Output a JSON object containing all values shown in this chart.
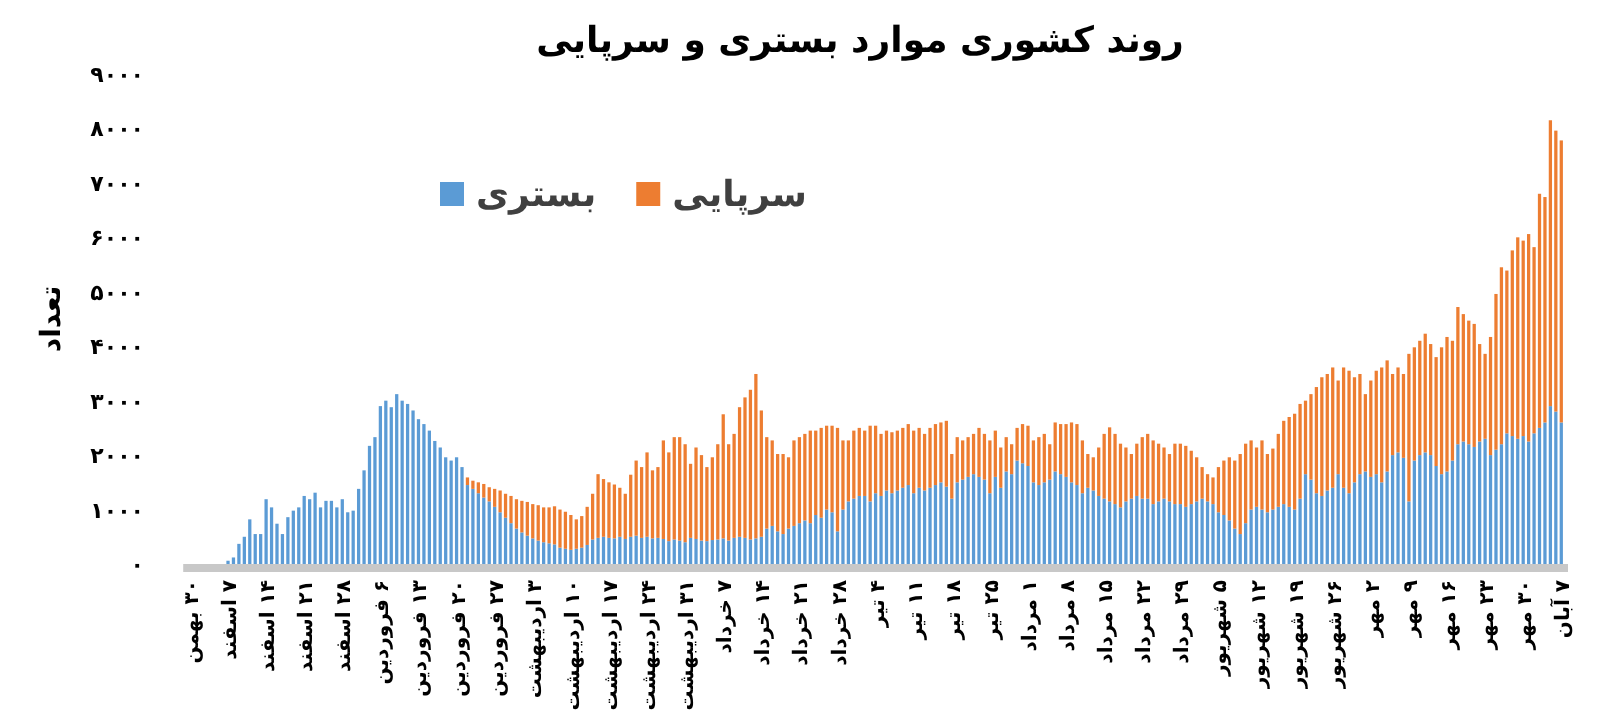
{
  "chart_data": {
    "type": "bar",
    "title": "روند کشوری موارد بستری و سرپایی",
    "ylabel": "تعداد",
    "stacked": true,
    "legend": "top left",
    "ylim": [
      0,
      9000
    ],
    "yticks": [
      {
        "value": 0,
        "label": "۰"
      },
      {
        "value": 1000,
        "label": "۱۰۰۰"
      },
      {
        "value": 2000,
        "label": "۲۰۰۰"
      },
      {
        "value": 3000,
        "label": "۳۰۰۰"
      },
      {
        "value": 4000,
        "label": "۴۰۰۰"
      },
      {
        "value": 5000,
        "label": "۵۰۰۰"
      },
      {
        "value": 6000,
        "label": "۶۰۰۰"
      },
      {
        "value": 7000,
        "label": "۷۰۰۰"
      },
      {
        "value": 8000,
        "label": "۸۰۰۰"
      },
      {
        "value": 9000,
        "label": "۹۰۰۰"
      }
    ],
    "categories": [
      "۳۰ بهمن",
      null,
      null,
      null,
      null,
      null,
      null,
      "۷ اسفند",
      null,
      null,
      null,
      null,
      null,
      null,
      "۱۴ اسفند",
      null,
      null,
      null,
      null,
      null,
      null,
      "۲۱ اسفند",
      null,
      null,
      null,
      null,
      null,
      null,
      "۲۸ اسفند",
      null,
      null,
      null,
      null,
      null,
      null,
      "۶ فروردین",
      null,
      null,
      null,
      null,
      null,
      null,
      "۱۳ فروردین",
      null,
      null,
      null,
      null,
      null,
      null,
      "۲۰ فروردین",
      null,
      null,
      null,
      null,
      null,
      null,
      "۲۷ فروردین",
      null,
      null,
      null,
      null,
      null,
      null,
      "۳ اردیبهشت",
      null,
      null,
      null,
      null,
      null,
      null,
      "۱۰ اردیبهشت",
      null,
      null,
      null,
      null,
      null,
      null,
      "۱۷ اردیبهشت",
      null,
      null,
      null,
      null,
      null,
      null,
      "۲۴ اردیبهشت",
      null,
      null,
      null,
      null,
      null,
      null,
      "۳۱ اردیبهشت",
      null,
      null,
      null,
      null,
      null,
      null,
      "۷ خرداد",
      null,
      null,
      null,
      null,
      null,
      null,
      "۱۴ خرداد",
      null,
      null,
      null,
      null,
      null,
      null,
      "۲۱ خرداد",
      null,
      null,
      null,
      null,
      null,
      null,
      "۲۸ خرداد",
      null,
      null,
      null,
      null,
      null,
      null,
      "۴ تیر",
      null,
      null,
      null,
      null,
      null,
      null,
      "۱۱ تیر",
      null,
      null,
      null,
      null,
      null,
      null,
      "۱۸ تیر",
      null,
      null,
      null,
      null,
      null,
      null,
      "۲۵ تیر",
      null,
      null,
      null,
      null,
      null,
      null,
      "۱ مرداد",
      null,
      null,
      null,
      null,
      null,
      null,
      "۸ مرداد",
      null,
      null,
      null,
      null,
      null,
      null,
      "۱۵ مرداد",
      null,
      null,
      null,
      null,
      null,
      null,
      "۲۲ مرداد",
      null,
      null,
      null,
      null,
      null,
      null,
      "۲۹ مرداد",
      null,
      null,
      null,
      null,
      null,
      null,
      "۵ شهریور",
      null,
      null,
      null,
      null,
      null,
      null,
      "۱۲ شهریور",
      null,
      null,
      null,
      null,
      null,
      null,
      "۱۹ شهریور",
      null,
      null,
      null,
      null,
      null,
      null,
      "۲۶ شهریور",
      null,
      null,
      null,
      null,
      null,
      null,
      "۲ مهر",
      null,
      null,
      null,
      null,
      null,
      null,
      "۹ مهر",
      null,
      null,
      null,
      null,
      null,
      null,
      "۱۶ مهر",
      null,
      null,
      null,
      null,
      null,
      null,
      "۲۳ مهر",
      null,
      null,
      null,
      null,
      null,
      null,
      "۳۰ مهر",
      null,
      null,
      null,
      null,
      null,
      null,
      "۷ آبان"
    ],
    "series": [
      {
        "name": "بستری",
        "color": "#5b9bd5",
        "values": [
          null,
          null,
          null,
          null,
          null,
          null,
          null,
          60,
          120,
          370,
          500,
          820,
          550,
          550,
          1190,
          1040,
          740,
          550,
          860,
          980,
          1040,
          1250,
          1190,
          1310,
          1040,
          1160,
          1160,
          1040,
          1190,
          950,
          980,
          1380,
          1720,
          2170,
          2330,
          2900,
          3000,
          2880,
          3120,
          3000,
          2940,
          2820,
          2660,
          2570,
          2450,
          2260,
          2140,
          1960,
          1900,
          1960,
          1780,
          1450,
          1380,
          1300,
          1220,
          1150,
          1050,
          950,
          850,
          750,
          650,
          580,
          520,
          470,
          430,
          400,
          380,
          360,
          300,
          280,
          260,
          280,
          300,
          350,
          450,
          480,
          500,
          480,
          470,
          500,
          460,
          500,
          520,
          480,
          500,
          470,
          480,
          460,
          420,
          450,
          430,
          400,
          480,
          460,
          430,
          420,
          440,
          450,
          470,
          430,
          480,
          500,
          480,
          450,
          470,
          500,
          650,
          700,
          600,
          550,
          650,
          700,
          750,
          800,
          750,
          900,
          850,
          1000,
          950,
          600,
          1000,
          1150,
          1200,
          1250,
          1250,
          1150,
          1300,
          1250,
          1350,
          1300,
          1350,
          1400,
          1450,
          1300,
          1400,
          1350,
          1400,
          1450,
          1500,
          1420,
          1200,
          1500,
          1550,
          1600,
          1650,
          1600,
          1550,
          1300,
          1600,
          1400,
          1700,
          1650,
          1900,
          1850,
          1800,
          1500,
          1450,
          1500,
          1550,
          1700,
          1650,
          1600,
          1500,
          1450,
          1300,
          1400,
          1350,
          1250,
          1200,
          1150,
          1100,
          1040,
          1150,
          1200,
          1250,
          1200,
          1200,
          1100,
          1150,
          1200,
          1150,
          1100,
          1100,
          1050,
          1100,
          1150,
          1200,
          1150,
          1100,
          950,
          900,
          800,
          650,
          550,
          750,
          1000,
          1050,
          1000,
          950,
          1000,
          1050,
          1100,
          1050,
          1000,
          1200,
          1650,
          1550,
          1300,
          1250,
          1350,
          1400,
          1650,
          1400,
          1300,
          1500,
          1650,
          1700,
          1600,
          1650,
          1500,
          1700,
          2000,
          2050,
          1950,
          1150,
          1900,
          2000,
          2050,
          2000,
          1800,
          1650,
          1700,
          1900,
          2200,
          2250,
          2200,
          2150,
          2250,
          2300,
          2000,
          2100,
          2200,
          2400,
          2350,
          2300,
          2350,
          2250,
          2400,
          2500,
          2600,
          2900,
          2800,
          2600
        ]
      },
      {
        "name": "سرپایی",
        "color": "#ed7d31",
        "values": [
          null,
          null,
          null,
          null,
          null,
          null,
          null,
          null,
          null,
          null,
          null,
          null,
          null,
          null,
          null,
          null,
          null,
          null,
          null,
          null,
          null,
          null,
          null,
          null,
          null,
          null,
          null,
          null,
          null,
          null,
          null,
          null,
          null,
          null,
          null,
          null,
          null,
          null,
          null,
          null,
          null,
          null,
          null,
          null,
          null,
          null,
          null,
          null,
          null,
          null,
          null,
          140,
          150,
          200,
          250,
          260,
          330,
          400,
          440,
          500,
          540,
          580,
          620,
          630,
          650,
          640,
          660,
          700,
          700,
          680,
          640,
          540,
          580,
          700,
          840,
          1170,
          1060,
          1020,
          990,
          900,
          830,
          1140,
          1380,
          1300,
          1550,
          1250,
          1300,
          1810,
          1630,
          1880,
          1900,
          1800,
          1360,
          1680,
          1570,
          1360,
          1520,
          1750,
          2280,
          1770,
          1910,
          2380,
          2580,
          2750,
          3020,
          2320,
          1680,
          1570,
          1420,
          1470,
          1310,
          1570,
          1580,
          1590,
          1700,
          1550,
          1650,
          1540,
          1590,
          1900,
          1270,
          1120,
          1250,
          1250,
          1200,
          1390,
          1240,
          1140,
          1100,
          1120,
          1100,
          1100,
          1120,
          1150,
          1100,
          1040,
          1100,
          1120,
          1100,
          1210,
          820,
          830,
          720,
          730,
          740,
          900,
          840,
          970,
          850,
          740,
          630,
          550,
          600,
          720,
          740,
          770,
          880,
          890,
          650,
          900,
          920,
          970,
          1100,
          1120,
          970,
          620,
          610,
          890,
          1190,
          1360,
          1290,
          1170,
          990,
          820,
          960,
          1130,
          1190,
          1170,
          1060,
          940,
          870,
          1110,
          1110,
          1120,
          980,
          810,
          580,
          500,
          490,
          830,
          1000,
          1160,
          1250,
          1470,
          1460,
          1270,
          1090,
          1270,
          1070,
          1120,
          1340,
          1530,
          1650,
          1760,
          1740,
          1350,
          1570,
          1950,
          2180,
          2140,
          2210,
          1720,
          2210,
          2250,
          1930,
          1840,
          1420,
          1770,
          1900,
          2110,
          2040,
          1490,
          1560,
          1540,
          2710,
          2080,
          2100,
          2180,
          2040,
          2000,
          2330,
          2470,
          2200,
          2520,
          2340,
          2270,
          2260,
          1790,
          1560,
          2170,
          2860,
          3250,
          2990,
          3410,
          3700,
          3590,
          3810,
          3420,
          4300,
          4140,
          5250,
          5160,
          5180
        ]
      }
    ]
  }
}
